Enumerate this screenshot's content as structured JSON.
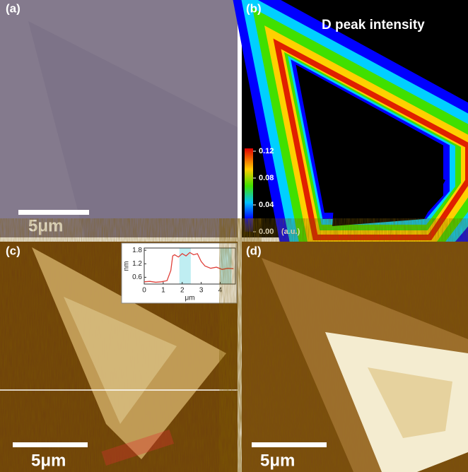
{
  "panels": [
    {
      "label": "(a)",
      "scale_bar": "5μm"
    },
    {
      "label": "(b)",
      "title": "D peak intensity",
      "colorbar": {
        "lim": [
          0,
          0.12
        ],
        "ticks": [
          0.12,
          0.08,
          0.04,
          {
            "value": 0,
            "label": "0.00"
          }
        ],
        "unit": "(a.u.)"
      }
    },
    {
      "label": "(c)",
      "scale_bar": "5μm",
      "inset": {
        "type": "line",
        "x_label": "μm",
        "y_label": "nm",
        "color": "#e0403a",
        "xlim": [
          0,
          4.8
        ],
        "ylim": [
          0.3,
          1.9
        ],
        "xticks": [
          0,
          1,
          2,
          3,
          4
        ],
        "yticks": [
          0.6,
          1.2,
          1.8
        ],
        "x": [
          0,
          0.3,
          0.6,
          0.9,
          1.2,
          1.4,
          1.5,
          1.6,
          1.8,
          2.0,
          2.2,
          2.4,
          2.6,
          2.8,
          3.0,
          3.2,
          3.5,
          3.8,
          4.1,
          4.4,
          4.7
        ],
        "values": [
          0.4,
          0.42,
          0.38,
          0.4,
          0.45,
          0.9,
          1.55,
          1.6,
          1.5,
          1.65,
          1.55,
          1.7,
          1.6,
          1.65,
          1.3,
          1.1,
          1.0,
          1.05,
          0.95,
          1.0,
          0.98
        ]
      }
    },
    {
      "label": "(d)",
      "scale_bar": "5μm"
    }
  ]
}
